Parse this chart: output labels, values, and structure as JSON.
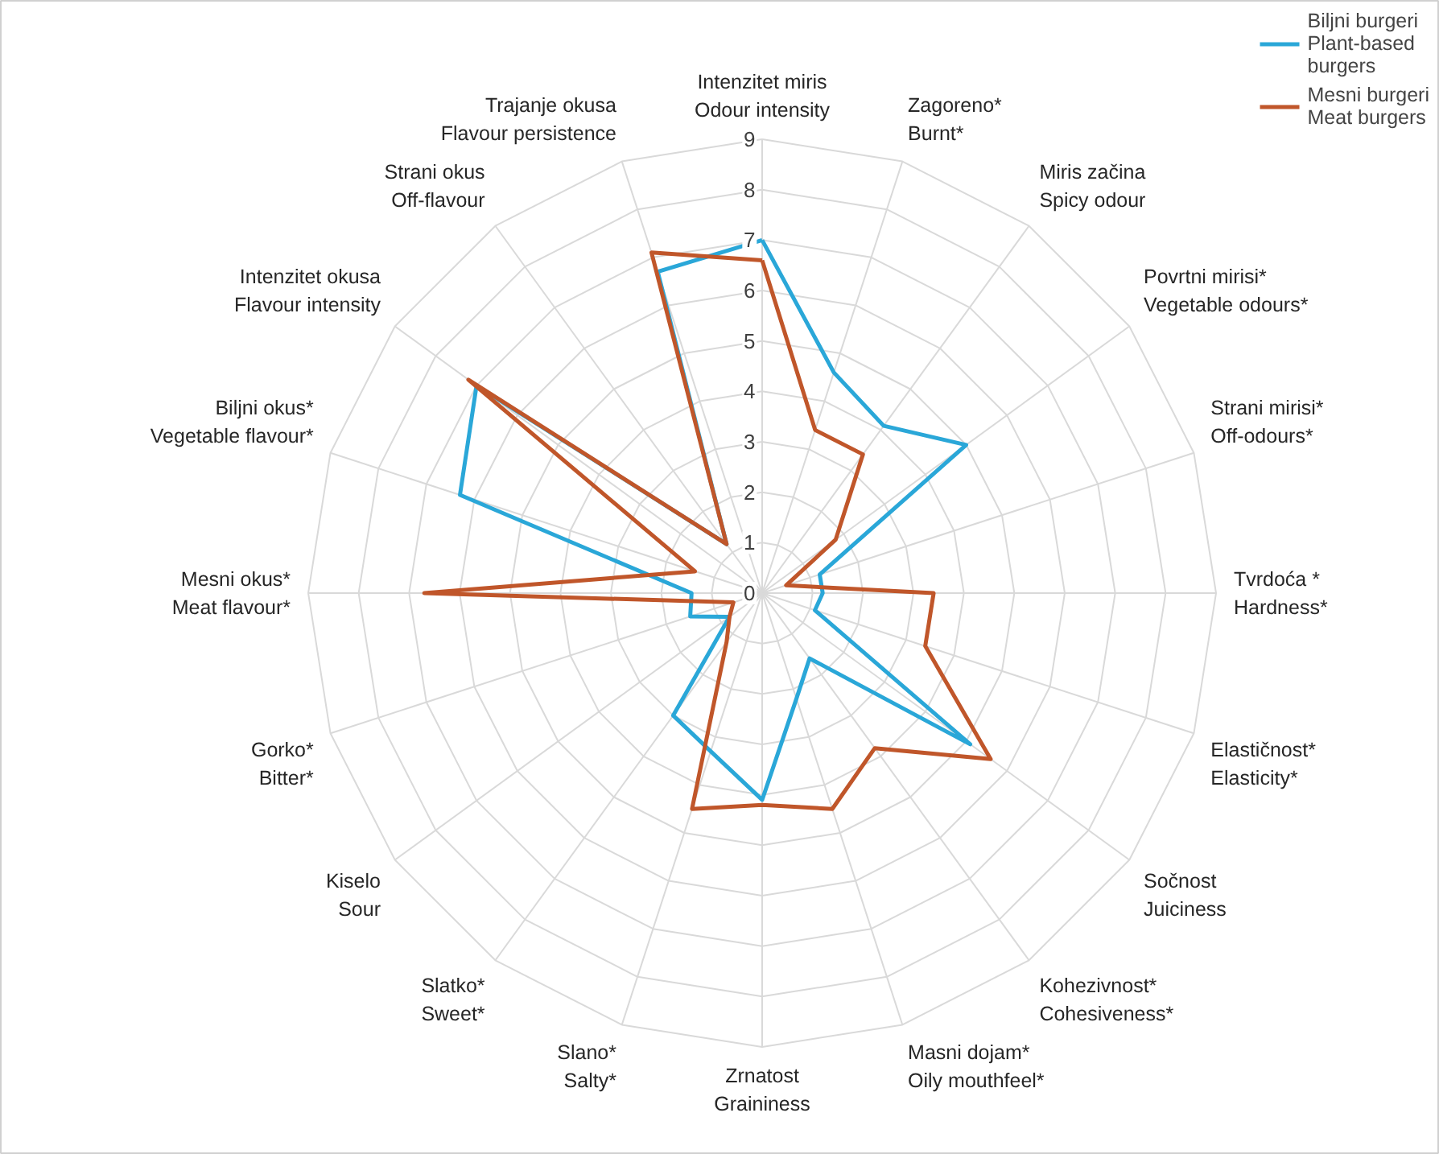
{
  "chart_data": {
    "type": "radar",
    "categories": [
      "Intenzitet miris\nOdour intensity",
      "Zagoreno*\nBurnt*",
      "Miris začina\nSpicy odour",
      "Povrtni mirisi*\nVegetable odours*",
      "Strani mirisi*\nOff-odours*",
      "Tvrdoća *\nHardness*",
      "Elastičnost*\nElasticity*",
      "Sočnost\nJuiciness",
      "Kohezivnost*\nCohesiveness*",
      "Masni dojam*\nOily mouthfeel*",
      "Zrnatost\nGraininess",
      "Slano*\nSalty*",
      "Slatko*\nSweet*",
      "Kiselo\nSour",
      "Gorko*\nBitter*",
      "Mesni okus*\nMeat flavour*",
      "Biljni okus*\nVegetable flavour*",
      "Intenzitet okusa\nFlavour intensity",
      "Strani okus\nOff-flavour",
      "Trajanje okusa\nFlavour persistence"
    ],
    "series": [
      {
        "name": "Biljni burgeri\nPlant-based\nburgers",
        "color": "#2aa7d8",
        "values": [
          7.0,
          4.6,
          4.1,
          5.0,
          1.2,
          1.2,
          1.1,
          5.1,
          1.6,
          2.2,
          4.1,
          3.3,
          3.0,
          0.8,
          1.5,
          1.4,
          6.3,
          7.0,
          1.2,
          6.7
        ]
      },
      {
        "name": "Mesni burgeri\nMeat burgers",
        "color": "#c0562a",
        "values": [
          6.6,
          3.4,
          3.4,
          1.8,
          0.5,
          3.4,
          3.4,
          5.6,
          3.8,
          4.5,
          4.2,
          4.5,
          1.2,
          0.8,
          0.6,
          6.7,
          1.4,
          7.2,
          1.2,
          7.1
        ]
      }
    ],
    "ylim": [
      0,
      9
    ],
    "yticks": [
      0,
      1,
      2,
      3,
      4,
      5,
      6,
      7,
      8,
      9
    ],
    "grid": true,
    "legend": "top right"
  }
}
